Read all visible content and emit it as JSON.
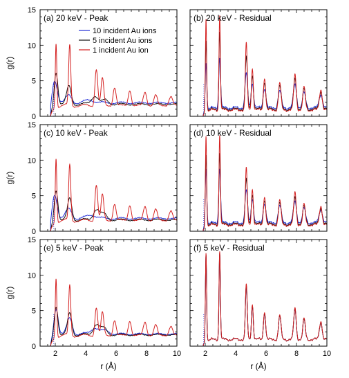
{
  "chart_data": {
    "type": "line",
    "xlabel": "r (Å)",
    "ylabel": "g(r)",
    "xlim": [
      1,
      10
    ],
    "ylim": [
      0,
      15
    ],
    "x_ticks": [
      2,
      4,
      6,
      8,
      10
    ],
    "y_ticks": [
      0,
      5,
      10,
      15
    ],
    "legend": {
      "placement": "top-right of panel (a)",
      "entries": [
        {
          "label": "10 incident Au ions",
          "color": "#1f2bd6"
        },
        {
          "label": "5 incident Au ions",
          "color": "#111111"
        },
        {
          "label": "1 incident Au ion",
          "color": "#d42020"
        }
      ]
    },
    "panels": [
      {
        "id": "a",
        "title": "(a) 20 keV - Peak",
        "kind": "peak",
        "series": [
          {
            "name": "10 incident Au ions",
            "color": "#1f2bd6",
            "peaks": [
              [
                1.95,
                3.6,
                0.18
              ],
              [
                2.9,
                1.0,
                0.2
              ],
              [
                4.3,
                0.4,
                0.3
              ]
            ],
            "baseline": 1.9
          },
          {
            "name": "5 incident Au ions",
            "color": "#111111",
            "peaks": [
              [
                2.05,
                4.8,
                0.12
              ],
              [
                2.9,
                2.5,
                0.15
              ],
              [
                4.6,
                1.2,
                0.22
              ],
              [
                5.3,
                0.6,
                0.2
              ]
            ],
            "baseline": 1.7
          },
          {
            "name": "1 incident Au ion",
            "color": "#d42020",
            "peaks": [
              [
                2.05,
                9.1,
                0.05
              ],
              [
                2.95,
                8.5,
                0.07
              ],
              [
                4.7,
                5.2,
                0.09
              ],
              [
                5.1,
                3.8,
                0.09
              ],
              [
                5.9,
                2.6,
                0.1
              ],
              [
                6.9,
                2.2,
                0.1
              ],
              [
                7.9,
                1.9,
                0.11
              ],
              [
                8.6,
                1.5,
                0.11
              ],
              [
                9.6,
                1.3,
                0.12
              ]
            ],
            "baseline": 1.5
          }
        ]
      },
      {
        "id": "b",
        "title": "(b) 20 keV - Residual",
        "kind": "residual",
        "series": [
          {
            "name": "10 incident Au ions",
            "color": "#1f2bd6",
            "peaks": [
              [
                2.05,
                6.8,
                0.05
              ],
              [
                2.95,
                7.0,
                0.06
              ],
              [
                4.7,
                4.9,
                0.08
              ],
              [
                5.1,
                3.5,
                0.08
              ],
              [
                5.9,
                2.8,
                0.09
              ],
              [
                6.9,
                2.4,
                0.1
              ],
              [
                7.9,
                3.3,
                0.1
              ],
              [
                8.5,
                2.1,
                0.1
              ],
              [
                9.6,
                1.9,
                0.11
              ]
            ],
            "baseline": 1.2
          },
          {
            "name": "5 incident Au ions",
            "color": "#111111",
            "peaks": [
              [
                2.05,
                10.1,
                0.045
              ],
              [
                2.95,
                10.9,
                0.05
              ],
              [
                4.7,
                7.4,
                0.07
              ],
              [
                5.1,
                4.8,
                0.07
              ],
              [
                5.9,
                3.9,
                0.08
              ],
              [
                6.9,
                3.3,
                0.09
              ],
              [
                7.9,
                4.3,
                0.09
              ],
              [
                8.5,
                2.8,
                0.09
              ],
              [
                9.6,
                2.5,
                0.1
              ]
            ],
            "baseline": 1.0
          },
          {
            "name": "1 incident Au ion",
            "color": "#d42020",
            "peaks": [
              [
                2.05,
                13.2,
                0.04
              ],
              [
                2.95,
                13.3,
                0.045
              ],
              [
                4.7,
                9.5,
                0.06
              ],
              [
                5.1,
                5.9,
                0.06
              ],
              [
                5.9,
                4.6,
                0.07
              ],
              [
                6.9,
                3.8,
                0.08
              ],
              [
                7.9,
                5.0,
                0.08
              ],
              [
                8.5,
                3.2,
                0.08
              ],
              [
                9.6,
                2.9,
                0.09
              ]
            ],
            "baseline": 0.9
          }
        ]
      },
      {
        "id": "c",
        "title": "(c) 10 keV - Peak",
        "kind": "peak",
        "series": [
          {
            "name": "10 incident Au ions",
            "color": "#1f2bd6",
            "peaks": [
              [
                1.95,
                3.8,
                0.17
              ],
              [
                2.9,
                1.3,
                0.2
              ],
              [
                4.4,
                0.5,
                0.3
              ]
            ],
            "baseline": 1.8
          },
          {
            "name": "5 incident Au ions",
            "color": "#111111",
            "peaks": [
              [
                2.05,
                4.5,
                0.12
              ],
              [
                2.95,
                3.0,
                0.14
              ],
              [
                4.7,
                1.5,
                0.2
              ],
              [
                5.2,
                0.8,
                0.2
              ]
            ],
            "baseline": 1.6
          },
          {
            "name": "1 incident Au ion",
            "color": "#d42020",
            "peaks": [
              [
                2.05,
                9.1,
                0.05
              ],
              [
                2.95,
                7.8,
                0.07
              ],
              [
                4.7,
                5.1,
                0.09
              ],
              [
                5.1,
                3.6,
                0.09
              ],
              [
                5.9,
                2.4,
                0.1
              ],
              [
                6.9,
                2.2,
                0.1
              ],
              [
                7.9,
                2.0,
                0.11
              ],
              [
                8.6,
                1.6,
                0.11
              ],
              [
                9.6,
                1.4,
                0.12
              ]
            ],
            "baseline": 1.5
          }
        ]
      },
      {
        "id": "d",
        "title": "(d) 10 keV - Residual",
        "kind": "residual",
        "series": [
          {
            "name": "10 incident Au ions",
            "color": "#1f2bd6",
            "peaks": [
              [
                2.05,
                8.1,
                0.05
              ],
              [
                2.95,
                7.6,
                0.06
              ],
              [
                4.7,
                4.6,
                0.08
              ],
              [
                5.1,
                3.4,
                0.08
              ],
              [
                5.9,
                2.8,
                0.09
              ],
              [
                6.9,
                2.4,
                0.1
              ],
              [
                7.9,
                3.0,
                0.1
              ],
              [
                8.5,
                2.0,
                0.1
              ],
              [
                9.6,
                1.9,
                0.11
              ]
            ],
            "baseline": 1.2
          },
          {
            "name": "5 incident Au ions",
            "color": "#111111",
            "peaks": [
              [
                2.05,
                10.2,
                0.045
              ],
              [
                2.95,
                10.0,
                0.05
              ],
              [
                4.7,
                6.4,
                0.07
              ],
              [
                5.1,
                4.2,
                0.07
              ],
              [
                5.9,
                3.5,
                0.08
              ],
              [
                6.9,
                3.0,
                0.09
              ],
              [
                7.9,
                3.8,
                0.09
              ],
              [
                8.5,
                2.5,
                0.09
              ],
              [
                9.6,
                2.3,
                0.1
              ]
            ],
            "baseline": 1.0
          },
          {
            "name": "1 incident Au ion",
            "color": "#d42020",
            "peaks": [
              [
                2.05,
                12.9,
                0.04
              ],
              [
                2.95,
                12.6,
                0.045
              ],
              [
                4.7,
                8.1,
                0.06
              ],
              [
                5.1,
                5.1,
                0.06
              ],
              [
                5.9,
                4.1,
                0.07
              ],
              [
                6.9,
                3.5,
                0.08
              ],
              [
                7.9,
                4.6,
                0.08
              ],
              [
                8.5,
                2.9,
                0.08
              ],
              [
                9.6,
                2.7,
                0.09
              ]
            ],
            "baseline": 0.9
          }
        ]
      },
      {
        "id": "e",
        "title": "(e) 5 keV - Peak",
        "kind": "peak",
        "series": [
          {
            "name": "10 incident Au ions",
            "color": "#1f2bd6",
            "peaks": [
              [
                2.05,
                3.9,
                0.14
              ],
              [
                2.95,
                2.2,
                0.17
              ],
              [
                4.6,
                0.9,
                0.25
              ],
              [
                5.3,
                0.5,
                0.25
              ]
            ],
            "baseline": 1.7
          },
          {
            "name": "5 incident Au ions",
            "color": "#111111",
            "peaks": [
              [
                2.05,
                4.3,
                0.12
              ],
              [
                2.95,
                3.0,
                0.14
              ],
              [
                4.7,
                1.5,
                0.2
              ],
              [
                5.2,
                0.9,
                0.2
              ]
            ],
            "baseline": 1.6
          },
          {
            "name": "1 incident Au ion",
            "color": "#d42020",
            "peaks": [
              [
                2.05,
                8.4,
                0.05
              ],
              [
                2.95,
                7.0,
                0.07
              ],
              [
                4.7,
                4.0,
                0.09
              ],
              [
                5.1,
                3.2,
                0.09
              ],
              [
                5.9,
                2.2,
                0.1
              ],
              [
                6.9,
                2.1,
                0.1
              ],
              [
                7.9,
                1.9,
                0.11
              ],
              [
                8.6,
                1.5,
                0.11
              ],
              [
                9.6,
                1.3,
                0.12
              ]
            ],
            "baseline": 1.5
          }
        ]
      },
      {
        "id": "f",
        "title": "(f) 5 keV - Residual",
        "kind": "residual",
        "series": [
          {
            "name": "10 incident Au ions",
            "color": "#1f2bd6",
            "peaks": [
              [
                2.05,
                12.3,
                0.04
              ],
              [
                2.95,
                12.1,
                0.045
              ],
              [
                4.7,
                7.5,
                0.06
              ],
              [
                5.1,
                4.8,
                0.06
              ],
              [
                5.9,
                3.8,
                0.07
              ],
              [
                6.9,
                3.3,
                0.08
              ],
              [
                7.9,
                4.2,
                0.08
              ],
              [
                8.5,
                2.8,
                0.08
              ],
              [
                9.6,
                2.5,
                0.09
              ]
            ],
            "baseline": 0.95
          },
          {
            "name": "5 incident Au ions",
            "color": "#111111",
            "peaks": [
              [
                2.05,
                12.4,
                0.04
              ],
              [
                2.95,
                12.2,
                0.045
              ],
              [
                4.7,
                7.6,
                0.06
              ],
              [
                5.1,
                4.9,
                0.06
              ],
              [
                5.9,
                3.9,
                0.07
              ],
              [
                6.9,
                3.3,
                0.08
              ],
              [
                7.9,
                4.3,
                0.08
              ],
              [
                8.5,
                2.8,
                0.08
              ],
              [
                9.6,
                2.5,
                0.09
              ]
            ],
            "baseline": 0.95
          },
          {
            "name": "1 incident Au ion",
            "color": "#d42020",
            "peaks": [
              [
                2.05,
                12.6,
                0.04
              ],
              [
                2.95,
                12.4,
                0.045
              ],
              [
                4.7,
                7.8,
                0.06
              ],
              [
                5.1,
                5.0,
                0.06
              ],
              [
                5.9,
                4.0,
                0.07
              ],
              [
                6.9,
                3.4,
                0.08
              ],
              [
                7.9,
                4.4,
                0.08
              ],
              [
                8.5,
                2.9,
                0.08
              ],
              [
                9.6,
                2.6,
                0.09
              ]
            ],
            "baseline": 0.95
          }
        ]
      }
    ]
  }
}
